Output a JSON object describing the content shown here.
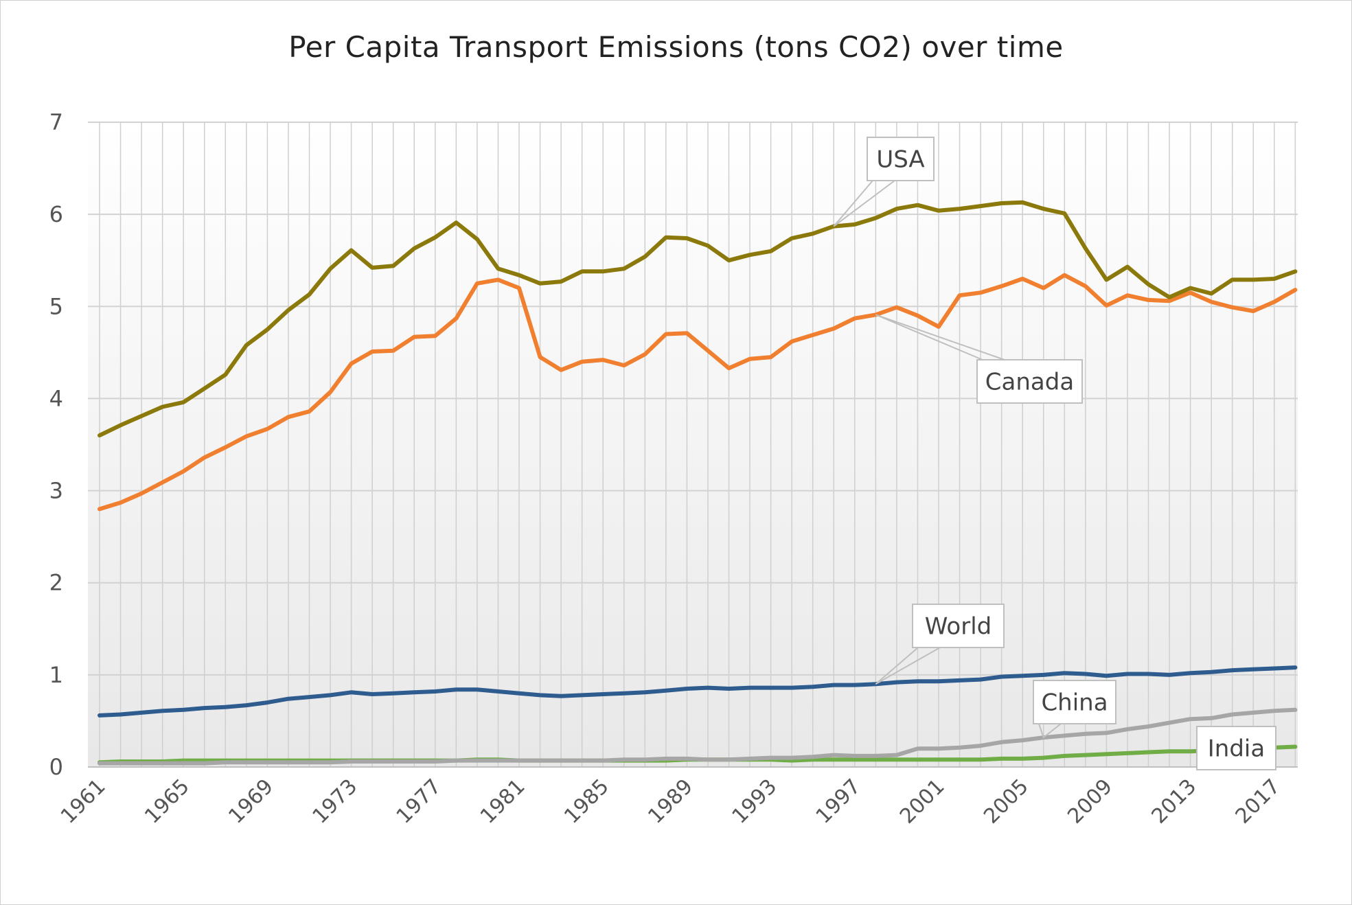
{
  "chart_data": {
    "type": "line",
    "title": "Per Capita Transport Emissions (tons CO2) over time",
    "xlabel": "",
    "ylabel": "",
    "ylim": [
      0,
      7
    ],
    "yticks": [
      0,
      1,
      2,
      3,
      4,
      5,
      6,
      7
    ],
    "xtick_labels": [
      "1961",
      "1965",
      "1969",
      "1973",
      "1977",
      "1981",
      "1985",
      "1989",
      "1993",
      "1997",
      "2001",
      "2005",
      "2009",
      "2013",
      "2017"
    ],
    "grid": "horizontal and vertical",
    "legend": "none (direct callout labels)",
    "x": [
      1961,
      1962,
      1963,
      1964,
      1965,
      1966,
      1967,
      1968,
      1969,
      1970,
      1971,
      1972,
      1973,
      1974,
      1975,
      1976,
      1977,
      1978,
      1979,
      1980,
      1981,
      1982,
      1983,
      1984,
      1985,
      1986,
      1987,
      1988,
      1989,
      1990,
      1991,
      1992,
      1993,
      1994,
      1995,
      1996,
      1997,
      1998,
      1999,
      2000,
      2001,
      2002,
      2003,
      2004,
      2005,
      2006,
      2007,
      2008,
      2009,
      2010,
      2011,
      2012,
      2013,
      2014,
      2015,
      2016,
      2017,
      2018
    ],
    "series": [
      {
        "name": "USA",
        "color": "#8b7a0b",
        "values": [
          3.6,
          3.71,
          3.81,
          3.91,
          3.96,
          4.11,
          4.26,
          4.58,
          4.75,
          4.96,
          5.13,
          5.41,
          5.61,
          5.42,
          5.44,
          5.63,
          5.75,
          5.91,
          5.73,
          5.41,
          5.34,
          5.25,
          5.27,
          5.38,
          5.38,
          5.41,
          5.54,
          5.75,
          5.74,
          5.66,
          5.5,
          5.56,
          5.6,
          5.74,
          5.79,
          5.87,
          5.89,
          5.96,
          6.06,
          6.1,
          6.04,
          6.06,
          6.09,
          6.12,
          6.13,
          6.06,
          6.01,
          5.63,
          5.29,
          5.43,
          5.24,
          5.1,
          5.2,
          5.14,
          5.29,
          5.29,
          5.3,
          5.38
        ]
      },
      {
        "name": "Canada",
        "color": "#f07f30",
        "values": [
          2.8,
          2.87,
          2.97,
          3.09,
          3.21,
          3.36,
          3.47,
          3.59,
          3.67,
          3.8,
          3.86,
          4.07,
          4.38,
          4.51,
          4.52,
          4.67,
          4.68,
          4.87,
          5.25,
          5.29,
          5.2,
          4.45,
          4.31,
          4.4,
          4.42,
          4.36,
          4.48,
          4.7,
          4.71,
          4.52,
          4.33,
          4.43,
          4.45,
          4.62,
          4.69,
          4.76,
          4.87,
          4.91,
          4.99,
          4.9,
          4.78,
          5.12,
          5.15,
          5.22,
          5.3,
          5.2,
          5.34,
          5.22,
          5.01,
          5.12,
          5.07,
          5.06,
          5.15,
          5.05,
          4.99,
          4.95,
          5.05,
          5.18
        ]
      },
      {
        "name": "World",
        "color": "#2e5c8f",
        "values": [
          0.56,
          0.57,
          0.59,
          0.61,
          0.62,
          0.64,
          0.65,
          0.67,
          0.7,
          0.74,
          0.76,
          0.78,
          0.81,
          0.79,
          0.8,
          0.81,
          0.82,
          0.84,
          0.84,
          0.82,
          0.8,
          0.78,
          0.77,
          0.78,
          0.79,
          0.8,
          0.81,
          0.83,
          0.85,
          0.86,
          0.85,
          0.86,
          0.86,
          0.86,
          0.87,
          0.89,
          0.89,
          0.9,
          0.92,
          0.93,
          0.93,
          0.94,
          0.95,
          0.98,
          0.99,
          1.0,
          1.02,
          1.01,
          0.99,
          1.01,
          1.01,
          1.0,
          1.02,
          1.03,
          1.05,
          1.06,
          1.07,
          1.08
        ]
      },
      {
        "name": "China",
        "color": "#a6a6a6",
        "values": [
          0.04,
          0.04,
          0.04,
          0.04,
          0.04,
          0.04,
          0.05,
          0.05,
          0.05,
          0.05,
          0.05,
          0.05,
          0.06,
          0.06,
          0.06,
          0.06,
          0.06,
          0.07,
          0.07,
          0.07,
          0.07,
          0.07,
          0.07,
          0.07,
          0.07,
          0.08,
          0.08,
          0.09,
          0.09,
          0.08,
          0.08,
          0.09,
          0.1,
          0.1,
          0.11,
          0.13,
          0.12,
          0.12,
          0.13,
          0.2,
          0.2,
          0.21,
          0.23,
          0.27,
          0.29,
          0.32,
          0.34,
          0.36,
          0.37,
          0.41,
          0.44,
          0.48,
          0.52,
          0.53,
          0.57,
          0.59,
          0.61,
          0.62
        ]
      },
      {
        "name": "India",
        "color": "#70ad47",
        "values": [
          0.05,
          0.06,
          0.06,
          0.06,
          0.07,
          0.07,
          0.07,
          0.07,
          0.07,
          0.07,
          0.07,
          0.07,
          0.07,
          0.07,
          0.07,
          0.07,
          0.07,
          0.07,
          0.08,
          0.08,
          0.07,
          0.07,
          0.07,
          0.07,
          0.07,
          0.07,
          0.07,
          0.07,
          0.08,
          0.08,
          0.08,
          0.08,
          0.08,
          0.07,
          0.08,
          0.08,
          0.08,
          0.08,
          0.08,
          0.08,
          0.08,
          0.08,
          0.08,
          0.09,
          0.09,
          0.1,
          0.12,
          0.13,
          0.14,
          0.15,
          0.16,
          0.17,
          0.17,
          0.18,
          0.19,
          0.2,
          0.21,
          0.22
        ]
      }
    ],
    "annotations": [
      {
        "series": "USA",
        "text": "USA",
        "anchor_year": 1996
      },
      {
        "series": "Canada",
        "text": "Canada",
        "anchor_year": 1998
      },
      {
        "series": "World",
        "text": "World",
        "anchor_year": 1998
      },
      {
        "series": "China",
        "text": "China",
        "anchor_year": 2006
      },
      {
        "series": "India",
        "text": "India",
        "anchor_year": 2018
      }
    ]
  }
}
